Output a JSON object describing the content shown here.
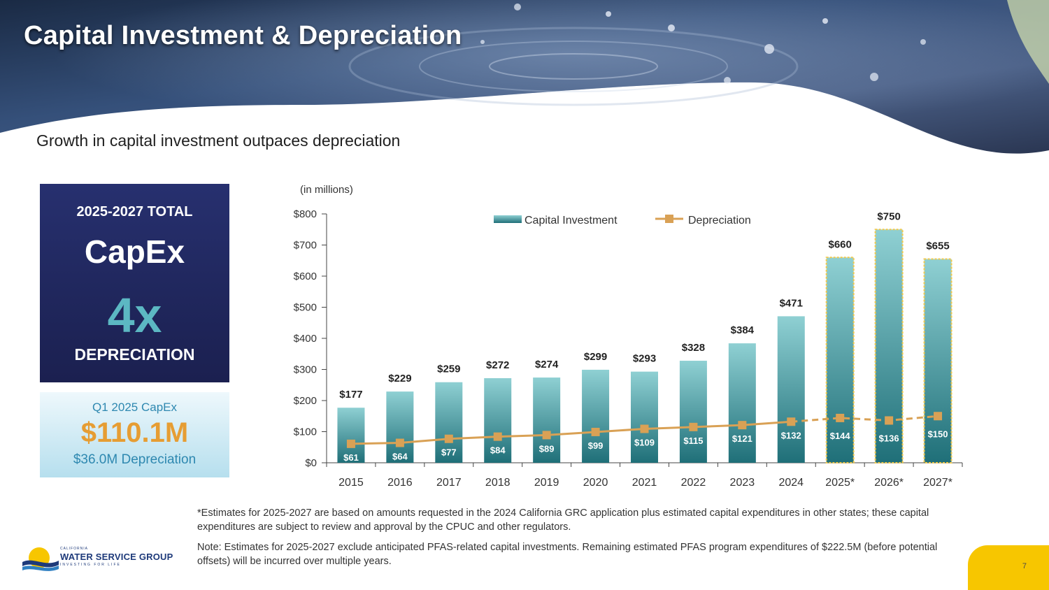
{
  "header": {
    "title": "Capital Investment & Depreciation",
    "subtitle": "Growth in capital investment outpaces depreciation"
  },
  "capex_box": {
    "line1": "2025-2027 TOTAL",
    "line2": "CapEx",
    "line3": "4x",
    "line4": "DEPRECIATION"
  },
  "q1_box": {
    "label": "Q1 2025 CapEx",
    "value": "$110.1M",
    "depreciation": "$36.0M Depreciation"
  },
  "chart_data": {
    "type": "bar",
    "units_note": "(in millions)",
    "categories": [
      "2015",
      "2016",
      "2017",
      "2018",
      "2019",
      "2020",
      "2021",
      "2022",
      "2023",
      "2024",
      "2025*",
      "2026*",
      "2027*"
    ],
    "series": [
      {
        "name": "Capital Investment",
        "type": "bar",
        "values": [
          177,
          229,
          259,
          272,
          274,
          299,
          293,
          328,
          384,
          471,
          660,
          750,
          655
        ],
        "labels": [
          "$177",
          "$229",
          "$259",
          "$272",
          "$274",
          "$299",
          "$293",
          "$328",
          "$384",
          "$471",
          "$660",
          "$750",
          "$655"
        ],
        "estimated_from_index": 10
      },
      {
        "name": "Depreciation",
        "type": "line",
        "values": [
          61,
          64,
          77,
          84,
          89,
          99,
          109,
          115,
          121,
          132,
          144,
          136,
          150
        ],
        "labels": [
          "$61",
          "$64",
          "$77",
          "$84",
          "$89",
          "$99",
          "$109",
          "$115",
          "$121",
          "$132",
          "$144",
          "$136",
          "$150"
        ],
        "dashed_from_index": 9
      }
    ],
    "y_ticks": [
      "$0",
      "$100",
      "$200",
      "$300",
      "$400",
      "$500",
      "$600",
      "$700",
      "$800"
    ],
    "ylim": [
      0,
      800
    ],
    "legend_position": "top",
    "grid": false,
    "colors": {
      "bar_top": "#8fd0d3",
      "bar_bottom": "#1f6f78",
      "estimated_outline": "#f2c94c",
      "line": "#d9a155",
      "marker": "#d9a155"
    }
  },
  "footnotes": {
    "note1": "*Estimates for 2025-2027 are based on amounts requested in the 2024 California GRC application plus estimated capital expenditures in other states; these capital expenditures are subject to review and approval by the CPUC and other regulators.",
    "note2": "Note: Estimates for 2025-2027 exclude anticipated PFAS-related capital investments. Remaining estimated PFAS program expenditures of $222.5M (before potential offsets) will be incurred over multiple years."
  },
  "logo": {
    "state": "CALIFORNIA",
    "name": "WATER SERVICE GROUP",
    "tagline": "INVESTING FOR LIFE"
  },
  "page_number": "7"
}
